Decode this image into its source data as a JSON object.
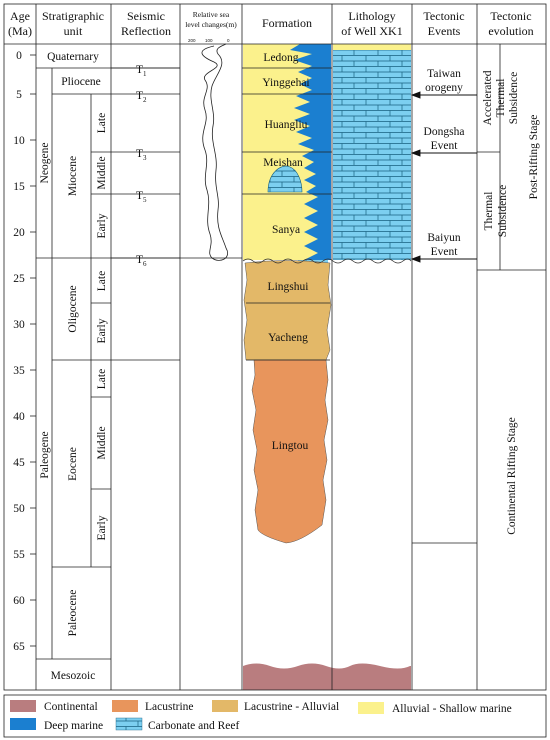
{
  "headers": {
    "age": "Age",
    "age_unit": "(Ma)",
    "strat_1": "Stratigraphic",
    "strat_2": "unit",
    "seis_1": "Seismic",
    "seis_2": "Reflection",
    "sea_1": "Relative sea",
    "sea_2": "level changes(m)",
    "formation": "Formation",
    "lith_1": "Lithology",
    "lith_2": "of Well XK1",
    "events_1": "Tectonic",
    "events_2": "Events",
    "evol_1": "Tectonic",
    "evol_2": "evolution"
  },
  "age_ticks": [
    "0",
    "5",
    "10",
    "15",
    "20",
    "25",
    "30",
    "35",
    "40",
    "45",
    "50",
    "55",
    "60",
    "65"
  ],
  "sea_ticks": [
    "200",
    "100",
    "0"
  ],
  "strat": {
    "quaternary": "Quaternary",
    "pliocene": "Pliocene",
    "neogene": "Neogene",
    "miocene": "Miocene",
    "oligocene": "Oligocene",
    "paleogene": "Paleogene",
    "eocene": "Eocene",
    "paleocene": "Paleocene",
    "mesozoic": "Mesozoic",
    "late": "Late",
    "middle": "Middle",
    "early": "Early"
  },
  "seismic": [
    {
      "label": "T",
      "sub": "1"
    },
    {
      "label": "T",
      "sub": "2"
    },
    {
      "label": "T",
      "sub": "3"
    },
    {
      "label": "T",
      "sub": "5"
    },
    {
      "label": "T",
      "sub": "6"
    }
  ],
  "formations": [
    "Ledong",
    "Yinggehai",
    "Huangliu",
    "Meishan",
    "Sanya",
    "Lingshui",
    "Yacheng",
    "Lingtou"
  ],
  "events": [
    "Taiwan",
    "orogeny",
    "Dongsha",
    "Event",
    "Baiyun",
    "Event"
  ],
  "evolution": {
    "accel_1": "Accelerated",
    "accel_2": "Thermal",
    "accel_3": "Subsidence",
    "thermal_1": "Thermal",
    "thermal_2": "Subsidence",
    "post": "Post-Rifting Stage",
    "continental": "Continental Rifting Stage"
  },
  "legend": [
    {
      "label": "Continental",
      "color": "#b97d7f"
    },
    {
      "label": "Lacustrine",
      "color": "#e8955c"
    },
    {
      "label": "Lacustrine - Alluvial",
      "color": "#e3b868"
    },
    {
      "label": "Alluvial - Shallow marine",
      "color": "#fbf18c"
    },
    {
      "label": "Deep marine",
      "color": "#1b7fd0"
    },
    {
      "label": "Carbonate and Reef",
      "color": "#7ccff0"
    }
  ]
}
